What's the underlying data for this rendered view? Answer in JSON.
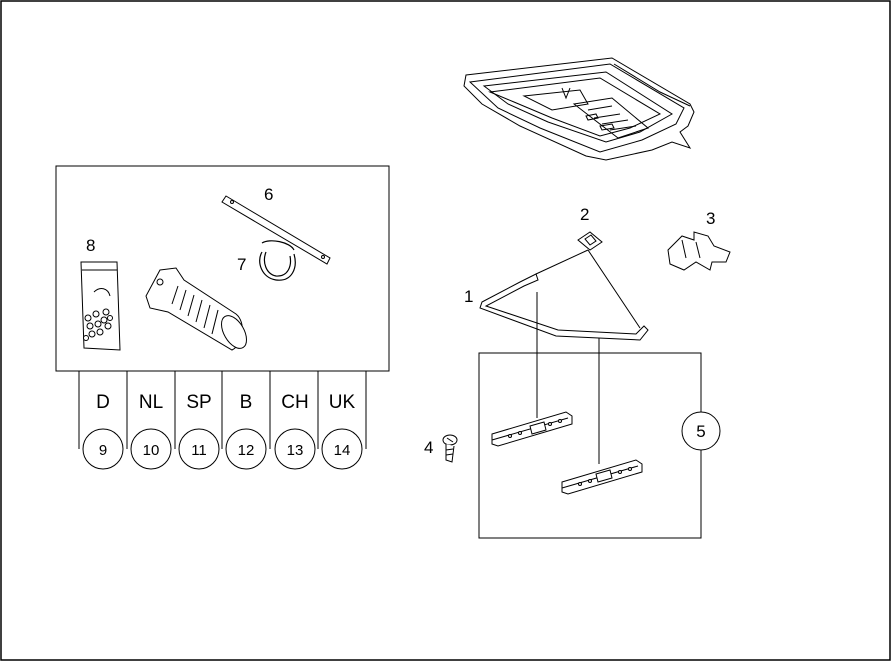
{
  "callouts": {
    "c1": "1",
    "c2": "2",
    "c3": "3",
    "c4": "4",
    "c5": "5",
    "c6": "6",
    "c7": "7",
    "c8": "8"
  },
  "variants": [
    {
      "country": "D",
      "number": "9"
    },
    {
      "country": "NL",
      "number": "10"
    },
    {
      "country": "SP",
      "number": "11"
    },
    {
      "country": "B",
      "number": "12"
    },
    {
      "country": "CH",
      "number": "13"
    },
    {
      "country": "UK",
      "number": "14"
    }
  ]
}
